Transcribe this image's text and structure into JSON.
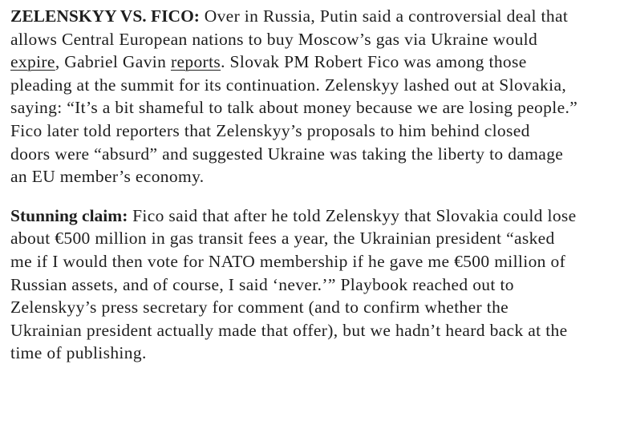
{
  "paragraphs": [
    {
      "lines": [
        [
          {
            "t": "ZELENSKYY VS. FICO:",
            "bold": true
          },
          {
            "t": " Over in Russia, Putin said a controversial deal that"
          }
        ],
        [
          {
            "t": "allows Central European nations to buy Moscow’s gas via Ukraine would"
          }
        ],
        [
          {
            "t": "expire",
            "link": true
          },
          {
            "t": ", Gabriel Gavin "
          },
          {
            "t": "reports",
            "link": true
          },
          {
            "t": ". Slovak PM Robert Fico was among those"
          }
        ],
        [
          {
            "t": "pleading at the summit for its continuation. Zelenskyy lashed out at Slovakia,"
          }
        ],
        [
          {
            "t": "saying: “It’s a bit shameful to talk about money because we are losing people.”"
          }
        ],
        [
          {
            "t": "Fico later told reporters that Zelenskyy’s proposals to him behind closed"
          }
        ],
        [
          {
            "t": "doors were “absurd” and suggested Ukraine was taking the liberty to damage"
          }
        ],
        [
          {
            "t": "an EU member’s economy."
          }
        ]
      ]
    },
    {
      "lines": [
        [
          {
            "t": "Stunning claim:",
            "bold": true
          },
          {
            "t": " Fico said that after he told Zelenskyy that Slovakia could lose"
          }
        ],
        [
          {
            "t": "about €500 million in gas transit fees a year, the Ukrainian president “asked"
          }
        ],
        [
          {
            "t": "me if I would then vote for NATO membership if he gave me €500 million of"
          }
        ],
        [
          {
            "t": "Russian assets, and of course, I said ‘never.’” Playbook reached out to"
          }
        ],
        [
          {
            "t": "Zelenskyy’s press secretary for comment (and to confirm whether the"
          }
        ],
        [
          {
            "t": "Ukrainian president actually made that offer), but we hadn’t heard back at the"
          }
        ],
        [
          {
            "t": "time of publishing."
          }
        ]
      ]
    }
  ]
}
